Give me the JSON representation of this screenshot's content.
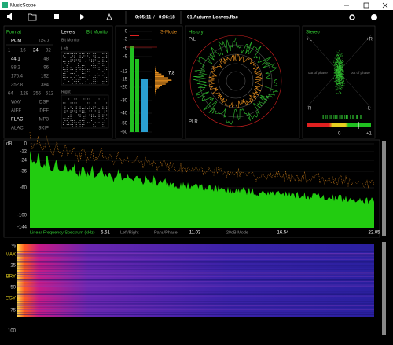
{
  "window": {
    "title": "MusicScope"
  },
  "toolbar": {
    "elapsed": "0:05:11",
    "separator": "/",
    "total": "0:06:18",
    "track": "01 Autumn Leaves.flac"
  },
  "format": {
    "title": "Format",
    "rows": [
      [
        "PCM",
        "DSD"
      ],
      [
        "1",
        "16",
        "24",
        "32"
      ],
      [
        "44.1",
        "48"
      ],
      [
        "88.2",
        "96"
      ],
      [
        "176.4",
        "192"
      ],
      [
        "352.8",
        "384"
      ],
      [
        "64",
        "128",
        "256",
        "512"
      ],
      [
        "WAV",
        "DSF"
      ],
      [
        "AIFF",
        "DFF"
      ],
      [
        "FLAC",
        "MP3"
      ],
      [
        "ALAC",
        "SKIP"
      ]
    ]
  },
  "levels": {
    "title": "Levels",
    "mode": "Bit Monitor",
    "subtitle": "Bit Monitor",
    "left": "Left",
    "right": "Right"
  },
  "meter": {
    "scale": [
      "0",
      "-3",
      "-6",
      "-9",
      "-12",
      "-15",
      "-20",
      "-30",
      "-40",
      "-50",
      "-60"
    ],
    "mode": "S-Mode",
    "reading": "7.8"
  },
  "history": {
    "title": "History",
    "top_label": "P/L",
    "bottom_label": "PLR"
  },
  "stereo": {
    "title": "Stereo",
    "plus_l": "+L",
    "plus_r": "+R",
    "minus_r": "-R",
    "minus_l": "-L",
    "out_of_phase_left": "out of phase",
    "out_of_phase_right": "out of phase",
    "scale_min": "0",
    "scale_max": "+1"
  },
  "spectrum": {
    "unit": "dB",
    "db_labels": [
      "0",
      "-12",
      "-24",
      "-36",
      "-60",
      "-100",
      "-144"
    ],
    "title": "Linear Frequency Spectrum (kHz)",
    "freq_labels": [
      "5.51",
      "11.03",
      "16.54",
      "22.05"
    ],
    "modes": [
      "Left/Right",
      "Pans/Phase",
      "-20dB Mode"
    ]
  },
  "spectrogram": {
    "labels": [
      "%",
      "MAX",
      "25",
      "BRY",
      "50",
      "CGY",
      "75",
      "100"
    ]
  }
}
